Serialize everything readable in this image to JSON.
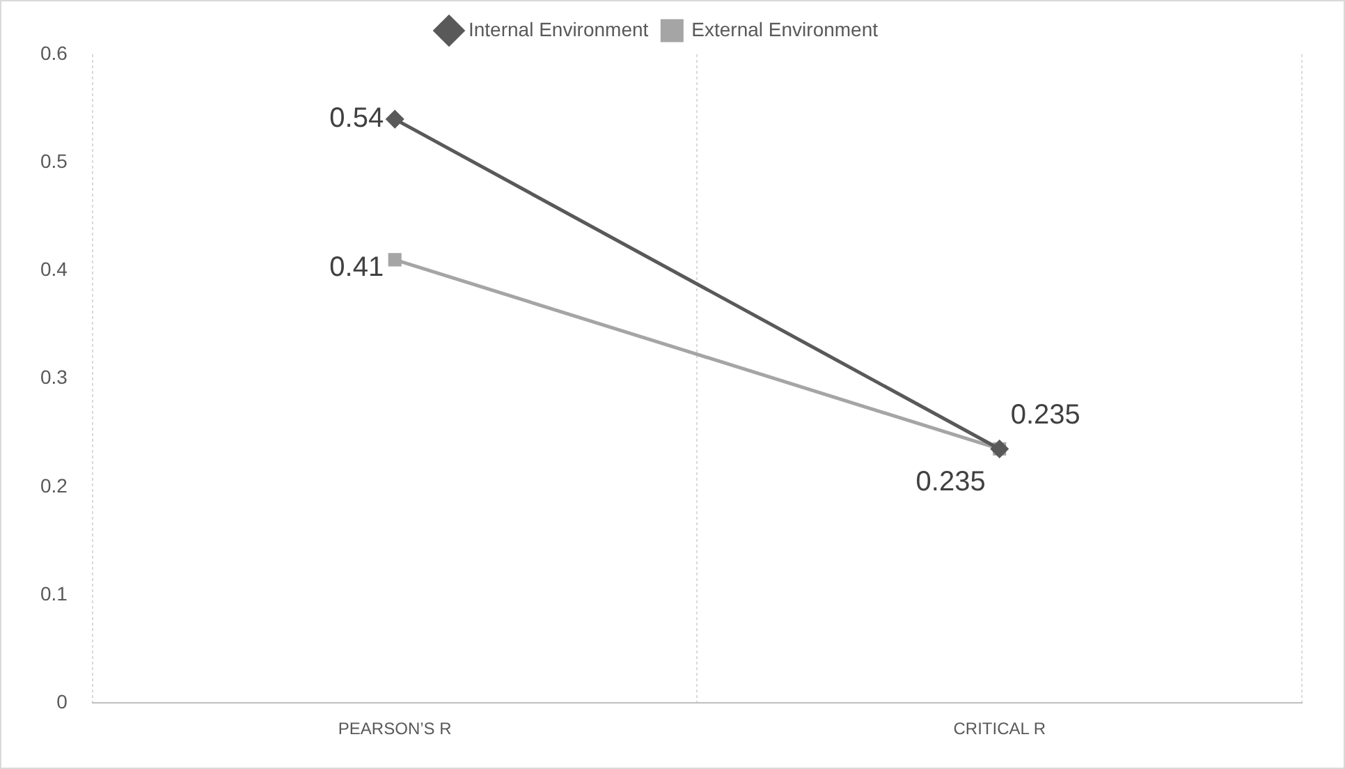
{
  "chart_data": {
    "type": "line",
    "categories": [
      "PEARSON’S R",
      "CRITICAL R"
    ],
    "series": [
      {
        "name": "Internal Environment",
        "color": "#595959",
        "values": [
          0.54,
          0.235
        ],
        "marker": "diamond"
      },
      {
        "name": "External Environment",
        "color": "#a5a5a5",
        "values": [
          0.41,
          0.235
        ],
        "marker": "square"
      }
    ],
    "ylim": [
      0,
      0.6
    ],
    "yticks": [
      0,
      0.1,
      0.2,
      0.3,
      0.4,
      0.5,
      0.6
    ],
    "grid": "x",
    "legend": "top",
    "data_labels": true,
    "line_style": "solid"
  }
}
